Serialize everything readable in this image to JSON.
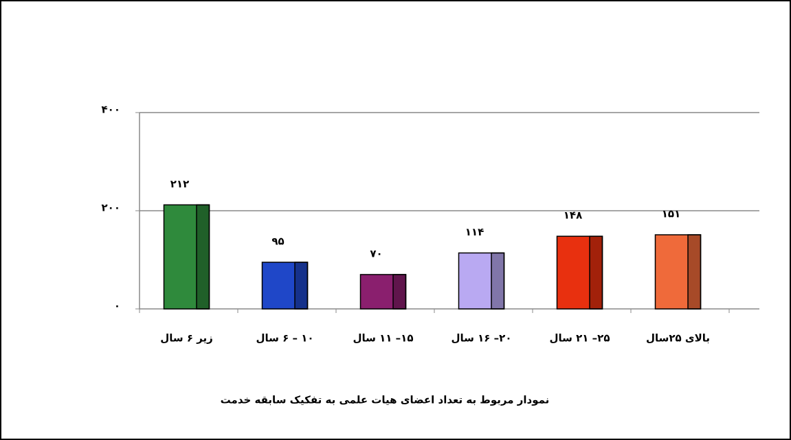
{
  "chart_data": {
    "type": "bar",
    "title": "نمودار مربوط به تعداد اعضای هیات علمی به تفکیک سابقه خدمت",
    "categories": [
      "زیر ۶ سال",
      "۱۰ – ۶ سال",
      "۱۵– ۱۱ سال",
      "۲۰– ۱۶ سال",
      "۲۵– ۲۱ سال",
      "بالای ۲۵سال"
    ],
    "values": [
      212,
      95,
      70,
      114,
      148,
      151
    ],
    "value_labels": [
      "۲۱۲",
      "۹۵",
      "۷۰",
      "۱۱۴",
      "۱۴۸",
      "۱۵۱"
    ],
    "colors": [
      "#2f8a3c",
      "#1f47c8",
      "#8a1f6e",
      "#b9a9f2",
      "#e8300f",
      "#ef6a3a"
    ],
    "ylim": [
      0,
      400
    ],
    "yticks": [
      {
        "value": 0,
        "label": "۰"
      },
      {
        "value": 200,
        "label": "۲۰۰"
      },
      {
        "value": 400,
        "label": "۴۰۰"
      }
    ],
    "grid": true
  }
}
